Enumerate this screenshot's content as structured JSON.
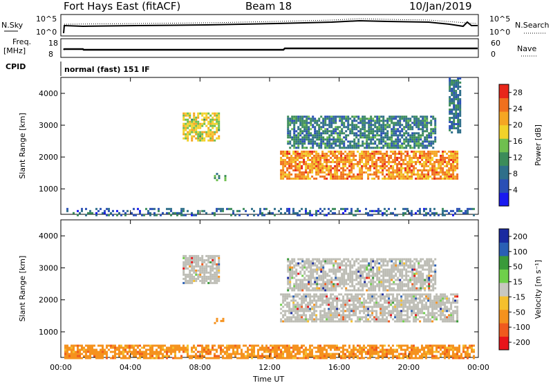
{
  "header": {
    "radar": "Fort Hays East (fitACF)",
    "beam": "Beam 18",
    "date": "10/Jan/2019"
  },
  "strips": {
    "nsky_label": "N.Sky",
    "nsky_ticks": [
      "10^5",
      "10^0"
    ],
    "nsearch_label": "N.Search",
    "nsearch_ticks": [
      "10^5",
      "10^0"
    ],
    "freq_label_1": "Freq.",
    "freq_label_2": "[MHz]",
    "freq_ticks": [
      "18",
      "8"
    ],
    "nave_label": "Nave",
    "nave_ticks": [
      "60",
      "0"
    ],
    "cpid_label": "CPID",
    "cpid_value": "normal (fast) 151 IF"
  },
  "colors": {
    "power_scale": [
      "#1a1af0",
      "#2a4fb5",
      "#2f6f8a",
      "#3c8c5a",
      "#6fbf4f",
      "#f2d22a",
      "#f5a623",
      "#f0701e",
      "#e8261a"
    ],
    "velocity_scale": [
      "#e8141a",
      "#f05a1e",
      "#f5921e",
      "#f5c02e",
      "#c8c8c0",
      "#6fd04a",
      "#3a9a3a",
      "#2a5fb5",
      "#1a2aa0"
    ],
    "ground_scatter": "#bdbdb5"
  },
  "chart_data": [
    {
      "type": "heatmap",
      "name": "power",
      "ylabel": "Slant Range [km]",
      "xlabel": "",
      "ylim": [
        200,
        4500
      ],
      "xlim_hours": [
        0,
        24
      ],
      "x_ticks": [
        "00:00",
        "04:00",
        "08:00",
        "12:00",
        "16:00",
        "20:00",
        "00:00"
      ],
      "y_ticks": [
        "1000",
        "2000",
        "3000",
        "4000"
      ],
      "colorbar_label": "Power [dB]",
      "colorbar_ticks": [
        "4",
        "8",
        "12",
        "16",
        "20",
        "24",
        "28"
      ],
      "colorbar_range": [
        0,
        30
      ],
      "regions": [
        {
          "t0": 7.0,
          "t1": 9.1,
          "r0": 2500,
          "r1": 3400,
          "level": 18
        },
        {
          "t0": 8.8,
          "t1": 9.4,
          "r0": 1300,
          "r1": 1500,
          "level": 10
        },
        {
          "t0": 12.6,
          "t1": 22.8,
          "r0": 1300,
          "r1": 2200,
          "level": 24
        },
        {
          "t0": 13.0,
          "t1": 21.5,
          "r0": 2300,
          "r1": 3300,
          "level": 9
        },
        {
          "t0": 22.3,
          "t1": 22.9,
          "r0": 2800,
          "r1": 4500,
          "level": 8
        },
        {
          "t0": 0.2,
          "t1": 23.8,
          "r0": 200,
          "r1": 400,
          "level": 6
        }
      ]
    },
    {
      "type": "heatmap",
      "name": "velocity",
      "ylabel": "Slant Range [km]",
      "xlabel": "Time UT",
      "ylim": [
        200,
        4500
      ],
      "xlim_hours": [
        0,
        24
      ],
      "x_ticks": [
        "00:00",
        "04:00",
        "08:00",
        "12:00",
        "16:00",
        "20:00",
        "00:00"
      ],
      "y_ticks": [
        "1000",
        "2000",
        "3000",
        "4000"
      ],
      "colorbar_label": "Velocity [m s⁻¹]",
      "colorbar_ticks": [
        "-200",
        "-100",
        "-50",
        "-15",
        "15",
        "50",
        "100",
        "200"
      ],
      "regions": [
        {
          "t0": 7.0,
          "t1": 9.1,
          "r0": 2500,
          "r1": 3400,
          "value": 0
        },
        {
          "t0": 8.8,
          "t1": 9.4,
          "r0": 1300,
          "r1": 1500,
          "value": -60
        },
        {
          "t0": 12.6,
          "t1": 22.8,
          "r0": 1300,
          "r1": 2200,
          "value": 0
        },
        {
          "t0": 13.0,
          "t1": 21.5,
          "r0": 2300,
          "r1": 3300,
          "value": 0
        },
        {
          "t0": 0.2,
          "t1": 23.8,
          "r0": 200,
          "r1": 600,
          "value": -40
        }
      ]
    }
  ]
}
